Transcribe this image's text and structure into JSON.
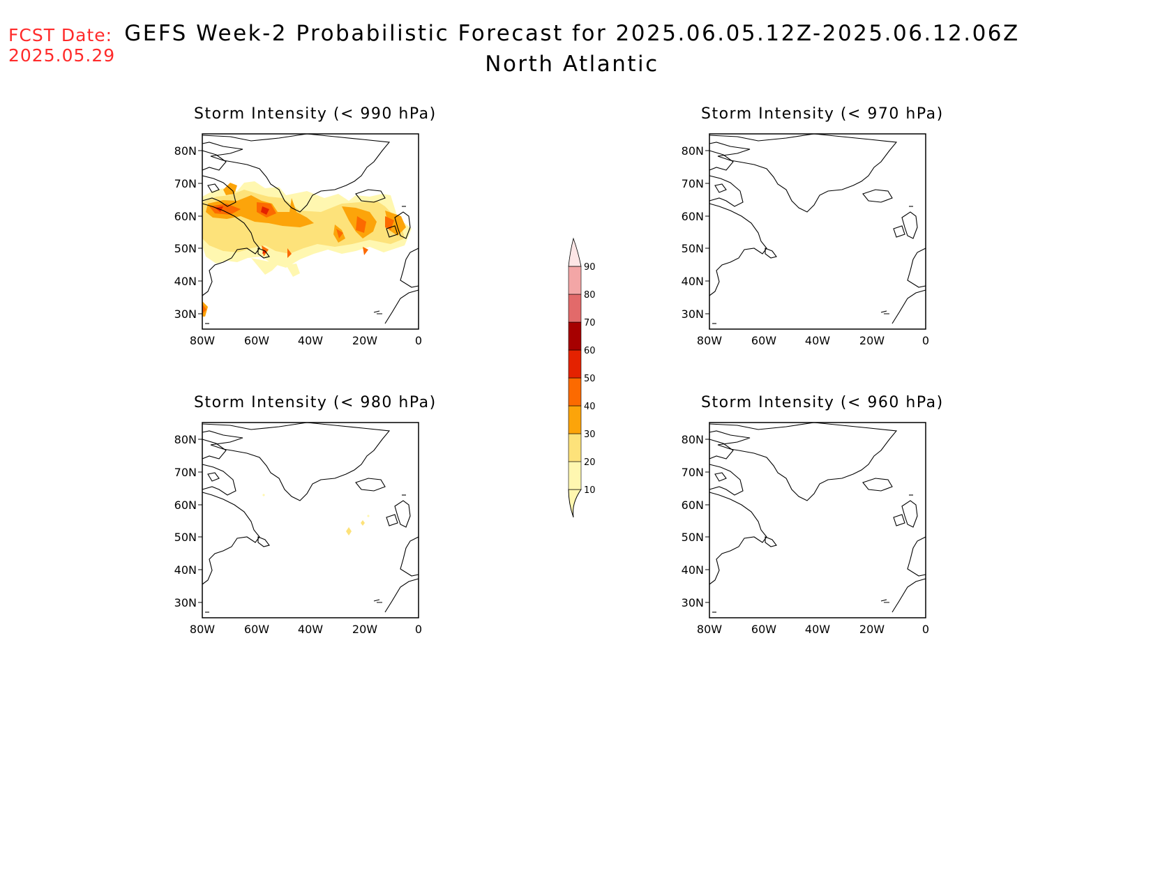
{
  "fcst": {
    "line1": "FCST Date:",
    "line2": "2025.05.29"
  },
  "title": {
    "line1": "GEFS Week-2 Probabilistic Forecast for 2025.06.05.12Z-2025.06.12.06Z",
    "line2": "North Atlantic"
  },
  "panels": [
    {
      "title": "Storm Intensity (< 990 hPa)",
      "lat_ticks": [
        "80N",
        "70N",
        "60N",
        "50N",
        "40N",
        "30N"
      ],
      "lon_ticks": [
        "80W",
        "60W",
        "40W",
        "20W",
        "0"
      ]
    },
    {
      "title": "Storm Intensity (< 970 hPa)",
      "lat_ticks": [
        "80N",
        "70N",
        "60N",
        "50N",
        "40N",
        "30N"
      ],
      "lon_ticks": [
        "80W",
        "60W",
        "40W",
        "20W",
        "0"
      ]
    },
    {
      "title": "Storm Intensity (< 980 hPa)",
      "lat_ticks": [
        "80N",
        "70N",
        "60N",
        "50N",
        "40N",
        "30N"
      ],
      "lon_ticks": [
        "80W",
        "60W",
        "40W",
        "20W",
        "0"
      ]
    },
    {
      "title": "Storm Intensity (< 960 hPa)",
      "lat_ticks": [
        "80N",
        "70N",
        "60N",
        "50N",
        "40N",
        "30N"
      ],
      "lon_ticks": [
        "80W",
        "60W",
        "40W",
        "20W",
        "0"
      ]
    }
  ],
  "colorbar": {
    "levels": [
      "10",
      "20",
      "30",
      "40",
      "50",
      "60",
      "70",
      "80",
      "90"
    ],
    "colors": [
      "#fff7b0",
      "#fde27a",
      "#fca40a",
      "#fc6a00",
      "#e42200",
      "#a60000",
      "#e26a6a",
      "#f3a6a6",
      "#fde6e6"
    ]
  },
  "colors": {
    "fcst_text": "#ff2a2a",
    "title_text": "#000000",
    "coastline": "#000000"
  }
}
